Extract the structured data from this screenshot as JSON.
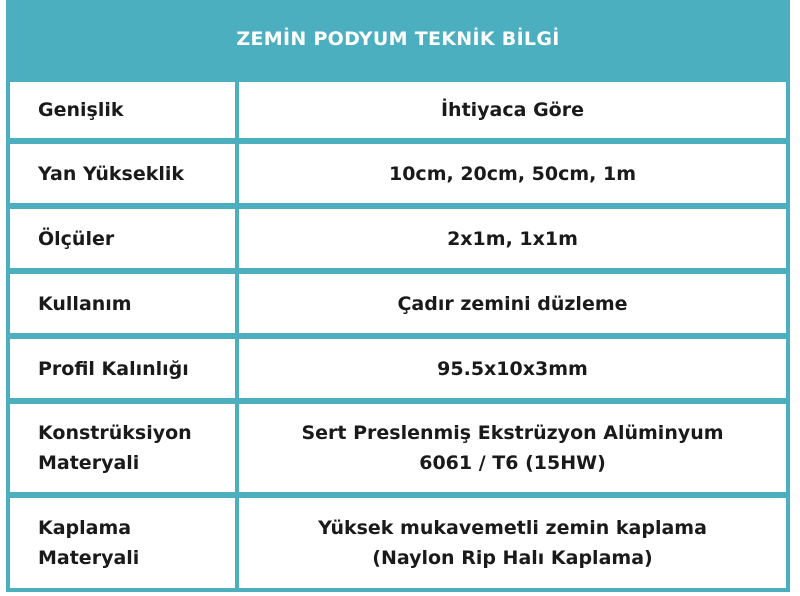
{
  "title": "ZEMİN PODYUM TEKNİK BİLGİ",
  "colors": {
    "accent": "#4bafbf",
    "text": "#1a1a1a"
  },
  "rows": [
    {
      "label": "Genişlik",
      "value": "İhtiyaca Göre"
    },
    {
      "label": "Yan Yükseklik",
      "value": "10cm, 20cm, 50cm, 1m"
    },
    {
      "label": "Ölçüler",
      "value": "2x1m, 1x1m"
    },
    {
      "label": "Kullanım",
      "value": "Çadır zemini düzleme"
    },
    {
      "label": "Profil Kalınlığı",
      "value": "95.5x10x3mm"
    },
    {
      "label": "Konstrüksiyon\nMateryali",
      "value": "Sert Preslenmiş Ekstrüzyon Alüminyum\n6061 / T6 (15HW)"
    },
    {
      "label": "Kaplama\nMateryali",
      "value": "Yüksek mukavemetli zemin kaplama\n(Naylon Rip Halı Kaplama)"
    }
  ]
}
